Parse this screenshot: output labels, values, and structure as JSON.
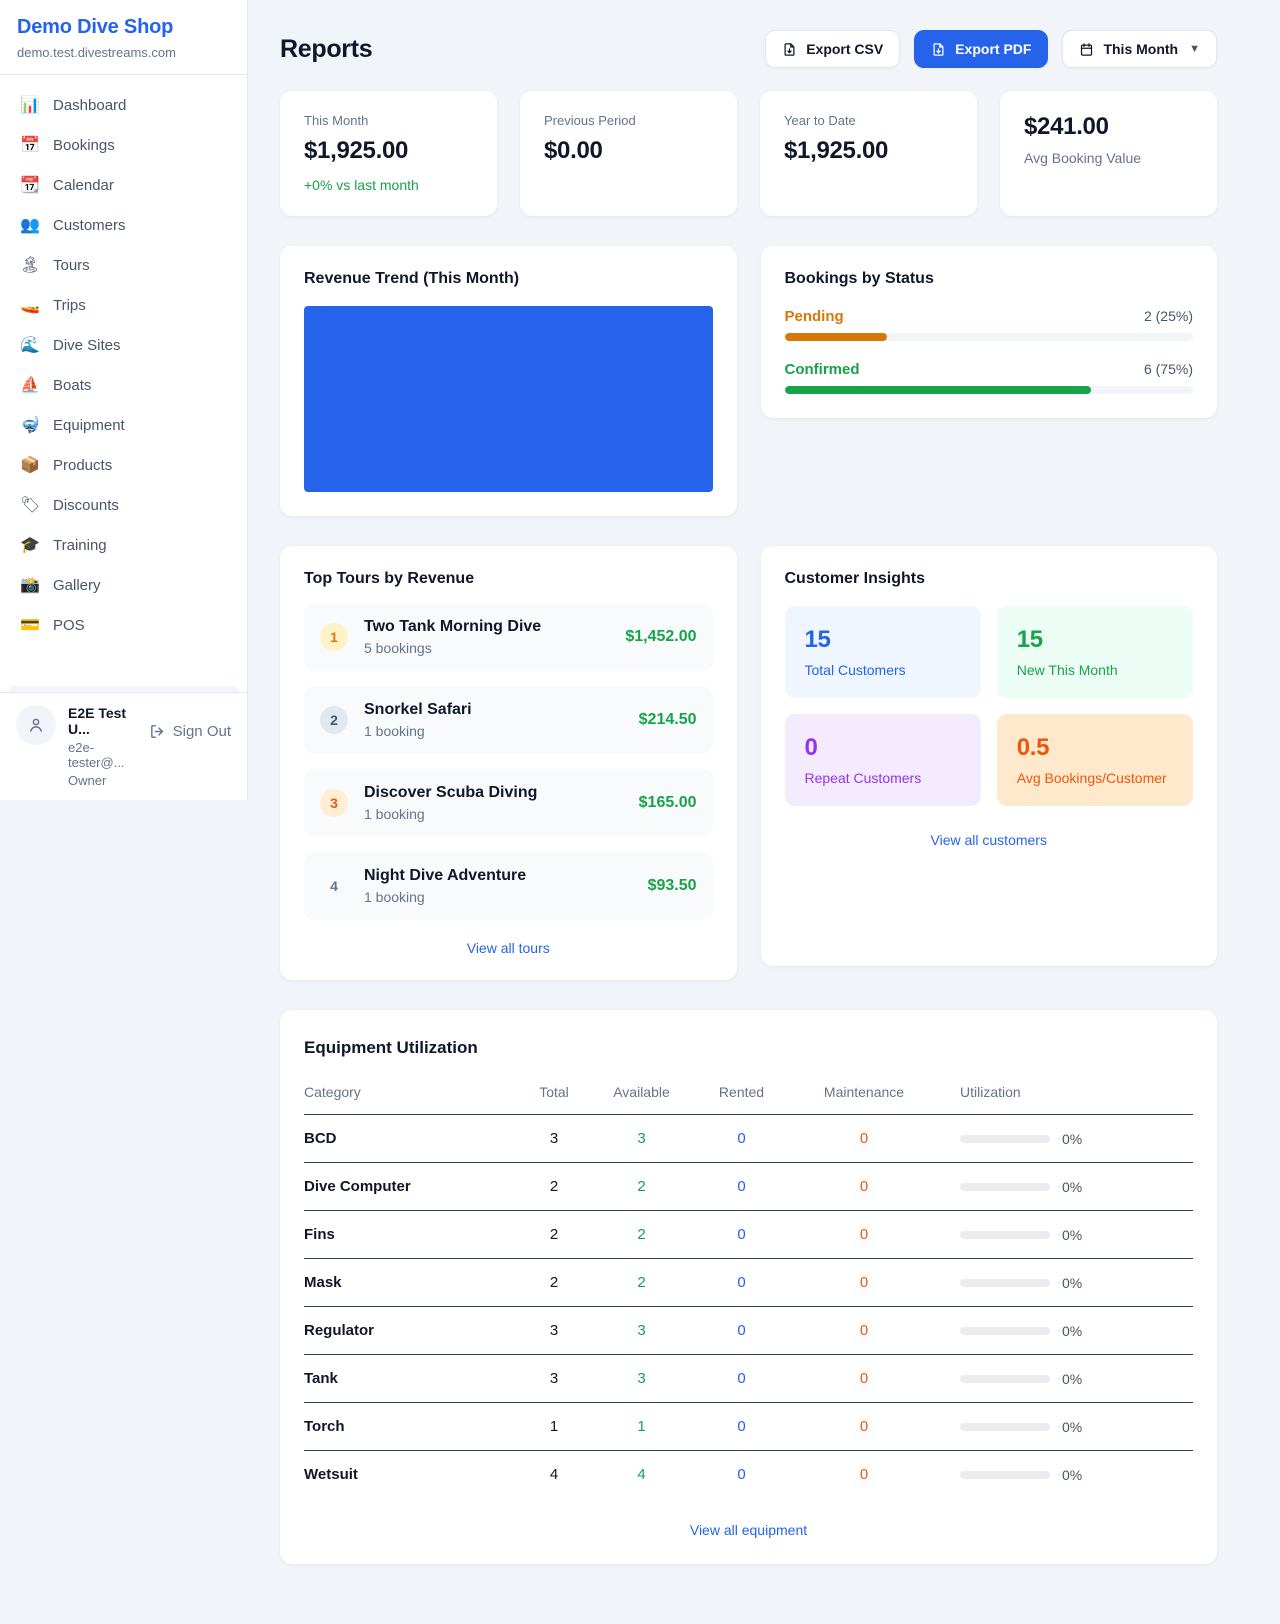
{
  "sidebar": {
    "brand": {
      "name": "Demo Dive Shop",
      "domain": "demo.test.divestreams.com"
    },
    "items": [
      {
        "id": "dashboard",
        "icon": "📊",
        "icon_name": "bar-chart-icon",
        "label": "Dashboard"
      },
      {
        "id": "bookings",
        "icon": "📅",
        "icon_name": "calendar-icon",
        "label": "Bookings"
      },
      {
        "id": "calendar",
        "icon": "📆",
        "icon_name": "tearoff-calendar-icon",
        "label": "Calendar"
      },
      {
        "id": "customers",
        "icon": "👥",
        "icon_name": "people-icon",
        "label": "Customers"
      },
      {
        "id": "tours",
        "icon": "🏝",
        "icon_name": "island-icon",
        "label": "Tours"
      },
      {
        "id": "trips",
        "icon": "🚤",
        "icon_name": "speedboat-icon",
        "label": "Trips"
      },
      {
        "id": "dive-sites",
        "icon": "🌊",
        "icon_name": "wave-icon",
        "label": "Dive Sites"
      },
      {
        "id": "boats",
        "icon": "⛵",
        "icon_name": "sailboat-icon",
        "label": "Boats"
      },
      {
        "id": "equipment",
        "icon": "🤿",
        "icon_name": "diving-mask-icon",
        "label": "Equipment"
      },
      {
        "id": "products",
        "icon": "📦",
        "icon_name": "package-icon",
        "label": "Products"
      },
      {
        "id": "discounts",
        "icon": "🏷",
        "icon_name": "tag-icon",
        "label": "Discounts"
      },
      {
        "id": "training",
        "icon": "🎓",
        "icon_name": "graduation-cap-icon",
        "label": "Training"
      },
      {
        "id": "gallery",
        "icon": "📸",
        "icon_name": "camera-icon",
        "label": "Gallery"
      },
      {
        "id": "pos",
        "icon": "💳",
        "icon_name": "credit-card-icon",
        "label": "POS"
      }
    ],
    "user": {
      "name": "E2E Test U...",
      "email": "e2e-tester@...",
      "role": "Owner",
      "sign_out": "Sign Out"
    }
  },
  "header": {
    "title": "Reports",
    "export_csv": "Export CSV",
    "export_pdf": "Export PDF",
    "period": "This Month"
  },
  "stats": [
    {
      "label": "This Month",
      "value": "$1,925.00",
      "delta": "+0% vs last month"
    },
    {
      "label": "Previous Period",
      "value": "$0.00"
    },
    {
      "label": "Year to Date",
      "value": "$1,925.00"
    },
    {
      "label": "Avg Booking Value",
      "value": "$241.00",
      "value_first": true
    }
  ],
  "revenue_trend": {
    "title": "Revenue Trend (This Month)",
    "bar_color": "#2563eb"
  },
  "bookings_by_status": {
    "title": "Bookings by Status",
    "rows": [
      {
        "label": "Pending",
        "value": "2 (25%)",
        "pct": 25,
        "color": "#d97706"
      },
      {
        "label": "Confirmed",
        "value": "6 (75%)",
        "pct": 75,
        "color": "#16a34a"
      }
    ]
  },
  "top_tours": {
    "title": "Top Tours by Revenue",
    "rows": [
      {
        "rank": "1",
        "name": "Two Tank Morning Dive",
        "sub": "5 bookings",
        "amount": "$1,452.00",
        "badge_bg": "#fef3c7",
        "badge_color": "#d97706"
      },
      {
        "rank": "2",
        "name": "Snorkel Safari",
        "sub": "1 booking",
        "amount": "$214.50",
        "badge_bg": "#e2e8f0",
        "badge_color": "#475569"
      },
      {
        "rank": "3",
        "name": "Discover Scuba Diving",
        "sub": "1 booking",
        "amount": "$165.00",
        "badge_bg": "#ffedd5",
        "badge_color": "#ea580c"
      },
      {
        "rank": "4",
        "name": "Night Dive Adventure",
        "sub": "1 booking",
        "amount": "$93.50",
        "badge_bg": "transparent",
        "badge_color": "#64748b"
      }
    ],
    "view_all": "View all tours"
  },
  "customer_insights": {
    "title": "Customer Insights",
    "tiles": [
      {
        "value": "15",
        "label": "Total Customers",
        "bg": "#eff6ff",
        "color": "#2563eb"
      },
      {
        "value": "15",
        "label": "New This Month",
        "bg": "#ecfdf5",
        "color": "#16a34a"
      },
      {
        "value": "0",
        "label": "Repeat Customers",
        "bg": "#f5ebff",
        "color": "#9333ea"
      },
      {
        "value": "0.5",
        "label": "Avg Bookings/Customer",
        "bg": "#ffe9cc",
        "color": "#ea580c"
      }
    ],
    "view_all": "View all customers"
  },
  "equipment": {
    "title": "Equipment Utilization",
    "columns": [
      "Category",
      "Total",
      "Available",
      "Rented",
      "Maintenance",
      "Utilization"
    ],
    "value_colors": {
      "total": "#0f172a",
      "available": "#16a34a",
      "rented": "#2563eb",
      "maintenance": "#ea580c"
    },
    "rows": [
      {
        "category": "BCD",
        "total": "3",
        "available": "3",
        "rented": "0",
        "maintenance": "0",
        "utilization": "0%"
      },
      {
        "category": "Dive Computer",
        "total": "2",
        "available": "2",
        "rented": "0",
        "maintenance": "0",
        "utilization": "0%"
      },
      {
        "category": "Fins",
        "total": "2",
        "available": "2",
        "rented": "0",
        "maintenance": "0",
        "utilization": "0%"
      },
      {
        "category": "Mask",
        "total": "2",
        "available": "2",
        "rented": "0",
        "maintenance": "0",
        "utilization": "0%"
      },
      {
        "category": "Regulator",
        "total": "3",
        "available": "3",
        "rented": "0",
        "maintenance": "0",
        "utilization": "0%"
      },
      {
        "category": "Tank",
        "total": "3",
        "available": "3",
        "rented": "0",
        "maintenance": "0",
        "utilization": "0%"
      },
      {
        "category": "Torch",
        "total": "1",
        "available": "1",
        "rented": "0",
        "maintenance": "0",
        "utilization": "0%"
      },
      {
        "category": "Wetsuit",
        "total": "4",
        "available": "4",
        "rented": "0",
        "maintenance": "0",
        "utilization": "0%"
      }
    ],
    "view_all": "View all equipment"
  }
}
